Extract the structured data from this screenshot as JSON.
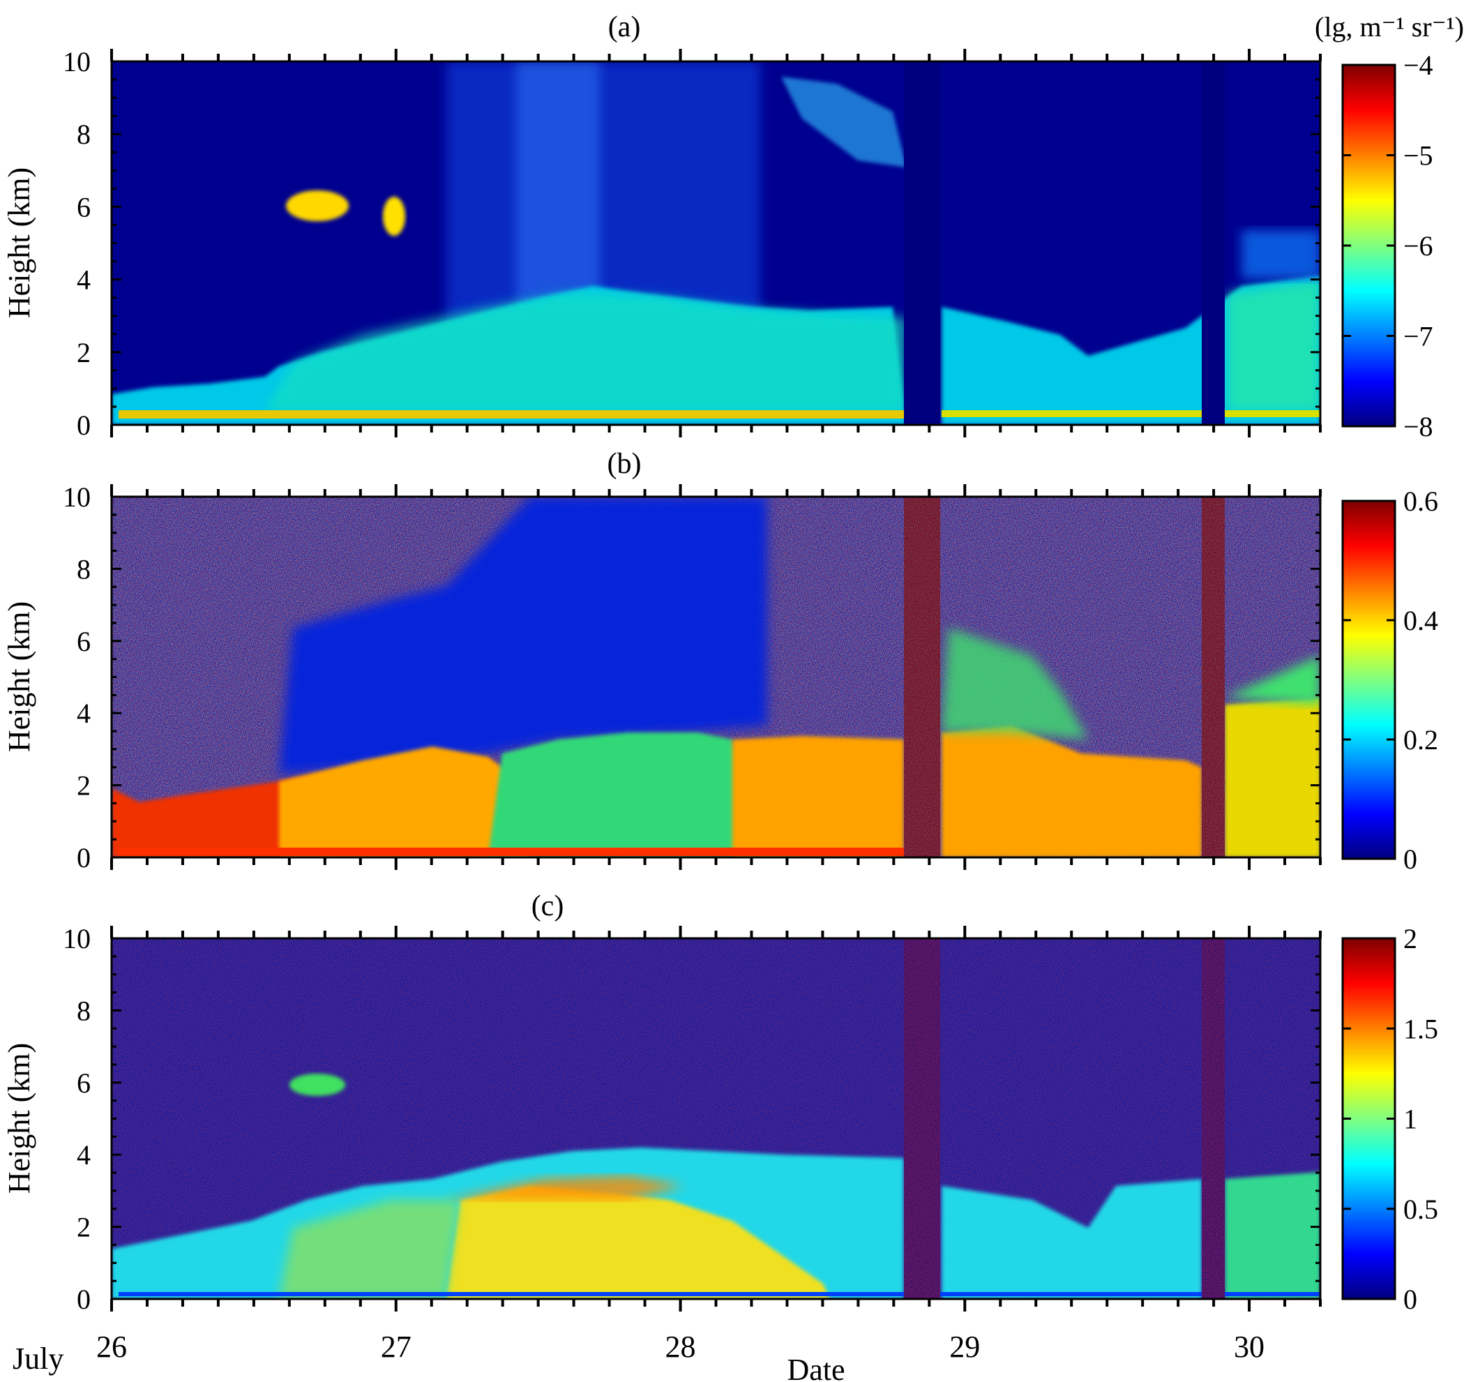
{
  "figure": {
    "xlabel": "Date",
    "x_prefix": "July",
    "x_ticks": [
      "26",
      "27",
      "28",
      "29",
      "30"
    ]
  },
  "chart_data": [
    {
      "type": "heatmap",
      "title": "(a)",
      "ylabel": "Height (km)",
      "ylim": [
        0,
        10
      ],
      "y_ticks": [
        "0",
        "2",
        "4",
        "6",
        "8",
        "10"
      ],
      "x_range": [
        26.0,
        30.25
      ],
      "colorbar": {
        "unit_label": "(lg, m⁻¹ sr⁻¹)",
        "min": -8,
        "max": -4,
        "ticks": [
          "−8",
          "−7",
          "−6",
          "−5",
          "−4"
        ]
      },
      "colormap": "jet",
      "gaps": [
        [
          28.75,
          28.88
        ],
        [
          29.8,
          29.88
        ]
      ]
    },
    {
      "type": "heatmap",
      "title": "(b)",
      "ylabel": "Height (km)",
      "ylim": [
        0,
        10
      ],
      "y_ticks": [
        "0",
        "2",
        "4",
        "6",
        "8",
        "10"
      ],
      "x_range": [
        26.0,
        30.25
      ],
      "colorbar": {
        "unit_label": "",
        "min": 0,
        "max": 0.6,
        "ticks": [
          "0",
          "0.2",
          "0.4",
          "0.6"
        ]
      },
      "colormap": "jet",
      "gaps": [
        [
          28.75,
          28.88
        ],
        [
          29.8,
          29.88
        ]
      ]
    },
    {
      "type": "heatmap",
      "title": "(c)",
      "ylabel": "Height (km)",
      "ylim": [
        0,
        10
      ],
      "y_ticks": [
        "0",
        "2",
        "4",
        "6",
        "8",
        "10"
      ],
      "x_range": [
        26.0,
        30.25
      ],
      "colorbar": {
        "unit_label": "",
        "min": 0,
        "max": 2,
        "ticks": [
          "0",
          "0.5",
          "1",
          "1.5",
          "2"
        ]
      },
      "colormap": "jet",
      "gaps": [
        [
          28.75,
          28.88
        ],
        [
          29.8,
          29.88
        ]
      ]
    }
  ]
}
